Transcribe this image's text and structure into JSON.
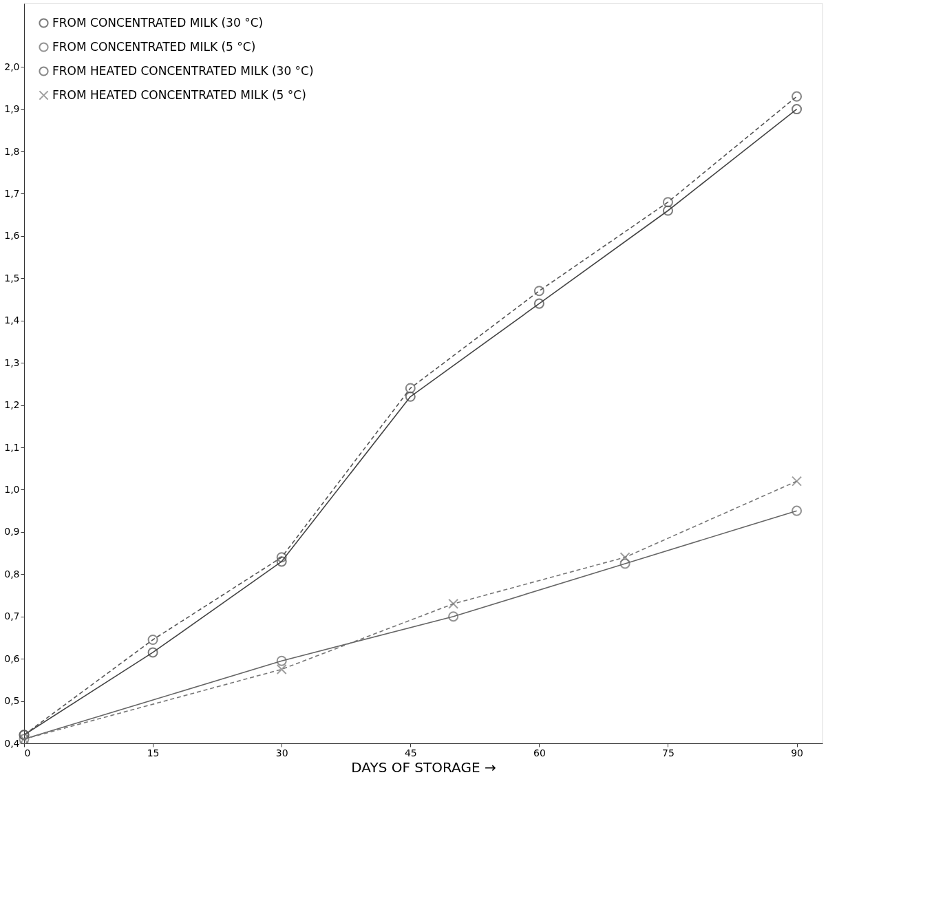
{
  "chart_data": {
    "type": "line",
    "xlabel": "DAYS OF STORAGE →",
    "xlim": [
      0,
      93
    ],
    "xticks": [
      0,
      15,
      30,
      45,
      60,
      75,
      90
    ],
    "ylim": [
      0.4,
      2.15
    ],
    "yticks": [
      {
        "value": 0.4,
        "label": "0,4"
      },
      {
        "value": 0.5,
        "label": "0,5"
      },
      {
        "value": 0.6,
        "label": "0,6"
      },
      {
        "value": 0.7,
        "label": "0,7"
      },
      {
        "value": 0.8,
        "label": "0,8"
      },
      {
        "value": 0.9,
        "label": "0,9"
      },
      {
        "value": 1.0,
        "label": "1,0"
      },
      {
        "value": 1.1,
        "label": "1,1"
      },
      {
        "value": 1.2,
        "label": "1,2"
      },
      {
        "value": 1.3,
        "label": "1,3"
      },
      {
        "value": 1.4,
        "label": "1,4"
      },
      {
        "value": 1.5,
        "label": "1,5"
      },
      {
        "value": 1.6,
        "label": "1,6"
      },
      {
        "value": 1.7,
        "label": "1,7"
      },
      {
        "value": 1.8,
        "label": "1,8"
      },
      {
        "value": 1.9,
        "label": "1,9"
      },
      {
        "value": 2.0,
        "label": "2,0"
      }
    ],
    "grid": false,
    "legend": "top left",
    "series": [
      {
        "name": "FROM CONCENTRATED MILK (30 °C)",
        "color": "#444444",
        "line_style": "solid",
        "marker": "circle",
        "x": [
          0,
          15,
          30,
          45,
          60,
          75,
          90
        ],
        "values": [
          0.42,
          0.615,
          0.83,
          1.22,
          1.44,
          1.66,
          1.9
        ]
      },
      {
        "name": "FROM CONCENTRATED MILK (5 °C)",
        "color": "#666666",
        "line_style": "solid",
        "marker": "circle",
        "x": [
          0,
          30,
          50,
          70,
          90
        ],
        "values": [
          0.41,
          0.595,
          0.7,
          0.825,
          0.95
        ]
      },
      {
        "name": "FROM HEATED CONCENTRATED MILK (30 °C)",
        "color": "#555555",
        "line_style": "dashed",
        "marker": "circle",
        "x": [
          0,
          15,
          30,
          45,
          60,
          75,
          90
        ],
        "values": [
          0.42,
          0.645,
          0.84,
          1.24,
          1.47,
          1.68,
          1.93
        ]
      },
      {
        "name": "FROM HEATED CONCENTRATED MILK (5 °C)",
        "color": "#777777",
        "line_style": "dashed",
        "marker": "cross",
        "x": [
          0,
          30,
          50,
          70,
          90
        ],
        "values": [
          0.41,
          0.575,
          0.73,
          0.84,
          1.02
        ]
      }
    ]
  }
}
